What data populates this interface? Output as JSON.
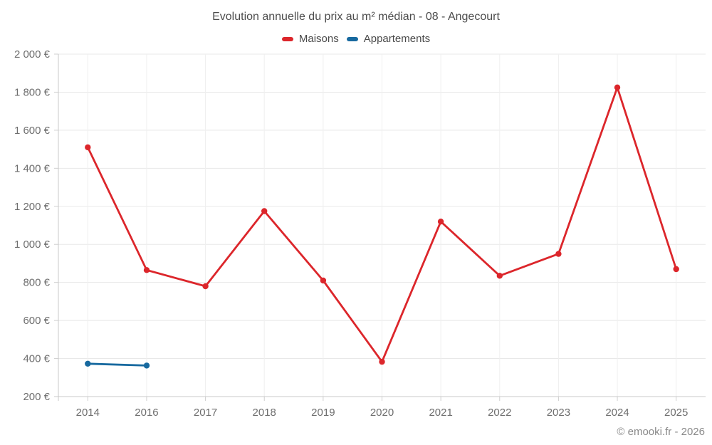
{
  "header": {
    "title": "Evolution annuelle du prix au m² médian - 08 - Angecourt"
  },
  "legend": {
    "items": [
      {
        "label": "Maisons",
        "color": "#dc262b"
      },
      {
        "label": "Appartements",
        "color": "#17699f"
      }
    ]
  },
  "footer": {
    "credit": "© emooki.fr - 2026"
  },
  "chart_data": {
    "type": "line",
    "title": "Evolution annuelle du prix au m² médian - 08 - Angecourt",
    "categories": [
      "2014",
      "2016",
      "2017",
      "2018",
      "2019",
      "2020",
      "2021",
      "2022",
      "2023",
      "2024",
      "2025"
    ],
    "series": [
      {
        "name": "Maisons",
        "color": "#dc262b",
        "values": [
          1510,
          865,
          780,
          1175,
          810,
          383,
          1120,
          835,
          950,
          1825,
          870
        ]
      },
      {
        "name": "Appartements",
        "color": "#17699f",
        "values": [
          373,
          363,
          null,
          null,
          null,
          null,
          null,
          null,
          null,
          null,
          null
        ]
      }
    ],
    "xlabel": "",
    "ylabel": "",
    "ylim": [
      200,
      2000
    ],
    "yticks": [
      {
        "value": 200,
        "label": "200 €"
      },
      {
        "value": 400,
        "label": "400 €"
      },
      {
        "value": 600,
        "label": "600 €"
      },
      {
        "value": 800,
        "label": "800 €"
      },
      {
        "value": 1000,
        "label": "1 000 €"
      },
      {
        "value": 1200,
        "label": "1 200 €"
      },
      {
        "value": 1400,
        "label": "1 400 €"
      },
      {
        "value": 1600,
        "label": "1 600 €"
      },
      {
        "value": 1800,
        "label": "1 800 €"
      },
      {
        "value": 2000,
        "label": "2 000 €"
      }
    ],
    "grid": true,
    "legend_position": "top",
    "colors": {
      "grid_line": "#e8e8e8",
      "axis_line": "#c9c9c9",
      "tick": "#cfcfcf",
      "axis_label": "#6e6e6e",
      "title_text": "#4d4d4d",
      "legend_text": "#4a4a4a",
      "credit_text": "#8a8a8a"
    }
  }
}
